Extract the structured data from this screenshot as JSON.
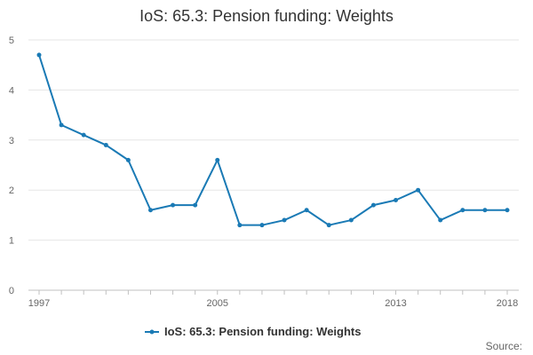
{
  "chart_data": {
    "type": "line",
    "title": "IoS: 65.3: Pension funding: Weights",
    "xlabel": "",
    "ylabel": "",
    "ylim": [
      0,
      5
    ],
    "yticks": [
      "0",
      "1",
      "2",
      "3",
      "4",
      "5"
    ],
    "xticks": [
      "1997",
      "2005",
      "2013",
      "2018"
    ],
    "grid": true,
    "legend_position": "bottom",
    "series": [
      {
        "name": "IoS: 65.3: Pension funding: Weights",
        "color": "#1a7ab5",
        "x": [
          1997,
          1998,
          1999,
          2000,
          2001,
          2002,
          2003,
          2004,
          2005,
          2006,
          2007,
          2008,
          2009,
          2010,
          2011,
          2012,
          2013,
          2014,
          2015,
          2016,
          2017,
          2018
        ],
        "values": [
          4.7,
          3.3,
          3.1,
          2.9,
          2.6,
          1.6,
          1.7,
          1.7,
          2.6,
          1.3,
          1.3,
          1.4,
          1.6,
          1.3,
          1.4,
          1.7,
          1.8,
          2.0,
          1.4,
          1.6,
          1.6,
          1.6
        ]
      }
    ],
    "credit": "Source:"
  }
}
